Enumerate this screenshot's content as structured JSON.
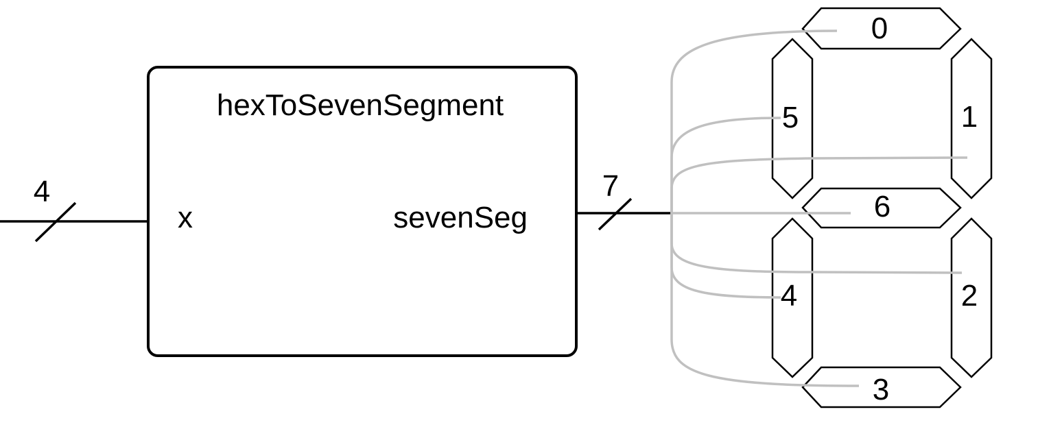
{
  "block": {
    "title": "hexToSevenSegment",
    "input_port": "x",
    "output_port": "sevenSeg"
  },
  "buses": {
    "input_width": "4",
    "output_width": "7"
  },
  "segments": {
    "s0": "0",
    "s1": "1",
    "s2": "2",
    "s3": "3",
    "s4": "4",
    "s5": "5",
    "s6": "6"
  },
  "colors": {
    "wire": "#000000",
    "fanout": "#c0c0c0",
    "background": "#ffffff"
  }
}
